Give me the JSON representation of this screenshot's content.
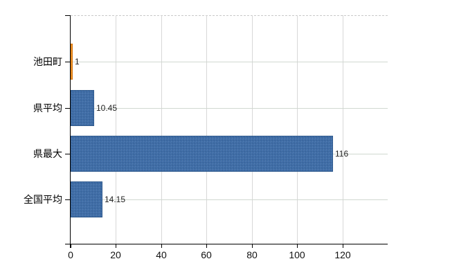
{
  "chart_data": {
    "type": "bar",
    "orientation": "horizontal",
    "title": "",
    "categories": [
      "池田町",
      "県平均",
      "県最大",
      "全国平均"
    ],
    "values": [
      1,
      10.45,
      116,
      14.15
    ],
    "value_labels": [
      "1",
      "10.45",
      "116",
      "14.15"
    ],
    "x_ticks": [
      0,
      20,
      40,
      60,
      80,
      100,
      120
    ],
    "x_tick_labels": [
      "0",
      "20",
      "40",
      "60",
      "80",
      "100",
      "120"
    ],
    "xlim": [
      0,
      140
    ],
    "grid": true,
    "legend_position": "none",
    "highlight_index": 0,
    "bar_colors": [
      "#f59a28",
      "#3e6da8",
      "#3e6da8",
      "#3e6da8"
    ],
    "bar_border_colors": [
      "#d2720e",
      "#2f5a8e",
      "#2f5a8e",
      "#2f5a8e"
    ],
    "colors": {
      "axis": "#000000",
      "grid_vertical": "#d7d7d7",
      "grid_horizontal": "#d0d8d0",
      "plot_top_border": "#c9c9c9",
      "category_text": "#000000",
      "tick_text": "#111111",
      "value_text": "#1f1f1f",
      "background": "#ffffff"
    }
  }
}
